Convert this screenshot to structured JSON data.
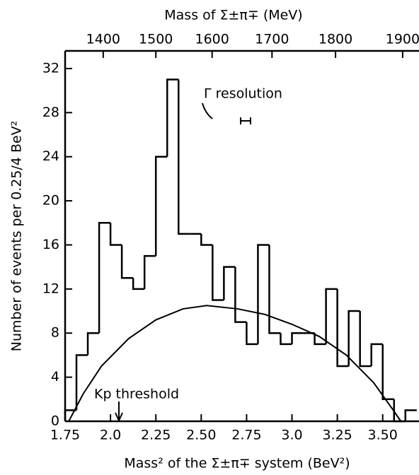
{
  "chart_data": {
    "type": "histogram",
    "title": "Mass of Σ±π∓ (MeV)",
    "xlabel": "Mass² of the Σ±π∓ system (BeV²)",
    "ylabel": "Number of events per 0.25/4 BeV²",
    "bins": [
      1.75,
      1.8125,
      1.875,
      1.9375,
      2.0,
      2.0625,
      2.125,
      2.1875,
      2.25,
      2.3125,
      2.375,
      2.4375,
      2.5,
      2.5625,
      2.625,
      2.6875,
      2.75,
      2.8125,
      2.875,
      2.9375,
      3.0,
      3.0625,
      3.125,
      3.1875,
      3.25,
      3.3125,
      3.375,
      3.4375,
      3.5,
      3.5625,
      3.625,
      3.6875
    ],
    "counts": [
      1,
      6,
      8,
      18,
      16,
      13,
      12,
      15,
      24,
      31,
      17,
      17,
      16,
      11,
      14,
      9,
      7,
      16,
      8,
      7,
      8,
      8,
      7,
      12,
      5,
      10,
      5,
      7,
      2,
      0,
      1
    ],
    "color": "#000000",
    "curve": {
      "x": [
        1.77,
        1.85,
        1.95,
        2.1,
        2.25,
        2.4,
        2.53,
        2.7,
        2.85,
        3.0,
        3.15,
        3.3,
        3.45,
        3.55,
        3.6
      ],
      "values": [
        0,
        2.5,
        5,
        7.5,
        9.2,
        10.2,
        10.5,
        10.2,
        9.7,
        8.8,
        7.7,
        6,
        3.5,
        1.2,
        0
      ]
    },
    "xlim": [
      1.75,
      3.7
    ],
    "ylim": [
      0,
      33.6
    ],
    "xticks": [
      1.75,
      {
        "value": 2.0,
        "label": "2.0"
      },
      2.25,
      {
        "value": 2.5,
        "label": "2.50"
      },
      2.75,
      {
        "value": 3.0,
        "label": "3.0"
      },
      3.25,
      {
        "value": 3.5,
        "label": "3.50"
      }
    ],
    "yticks": [
      0,
      4,
      8,
      12,
      16,
      20,
      24,
      28,
      32
    ],
    "x2ticks": [
      1400,
      1500,
      1600,
      1700,
      1800,
      1900
    ],
    "annotations": [
      "Γ resolution",
      "Kp threshold"
    ]
  }
}
